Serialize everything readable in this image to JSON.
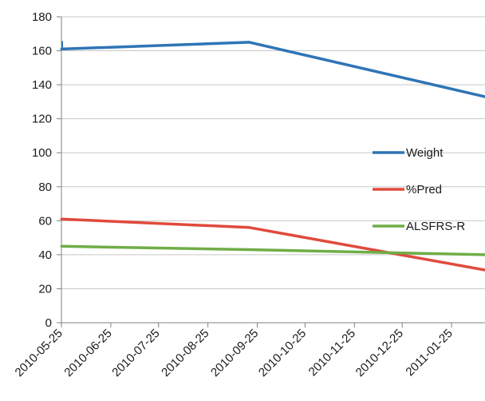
{
  "chart_data": {
    "type": "line",
    "x_type": "date",
    "x": [
      "2010-05-25",
      "2010-09-20",
      "2011-02-15"
    ],
    "xlim": [
      "2010-05-25",
      "2011-02-15"
    ],
    "x_tick_labels": [
      "2010-05-25",
      "2010-06-25",
      "2010-07-25",
      "2010-08-25",
      "2010-09-25",
      "2010-10-25",
      "2010-11-25",
      "2010-12-25",
      "2011-01-25"
    ],
    "ylim": [
      0,
      180
    ],
    "y_ticks": [
      0,
      20,
      40,
      60,
      80,
      100,
      120,
      140,
      160,
      180
    ],
    "grid": true,
    "legend_placement": "right",
    "series": [
      {
        "name": "Weight",
        "color": "#2e75b6",
        "values": [
          161,
          165,
          133
        ]
      },
      {
        "name": "%Pred",
        "color": "#e04a3c",
        "values": [
          61,
          56,
          31
        ]
      },
      {
        "name": "ALSFRS-R",
        "color": "#70ad47",
        "values": [
          45,
          43,
          40
        ]
      }
    ]
  }
}
